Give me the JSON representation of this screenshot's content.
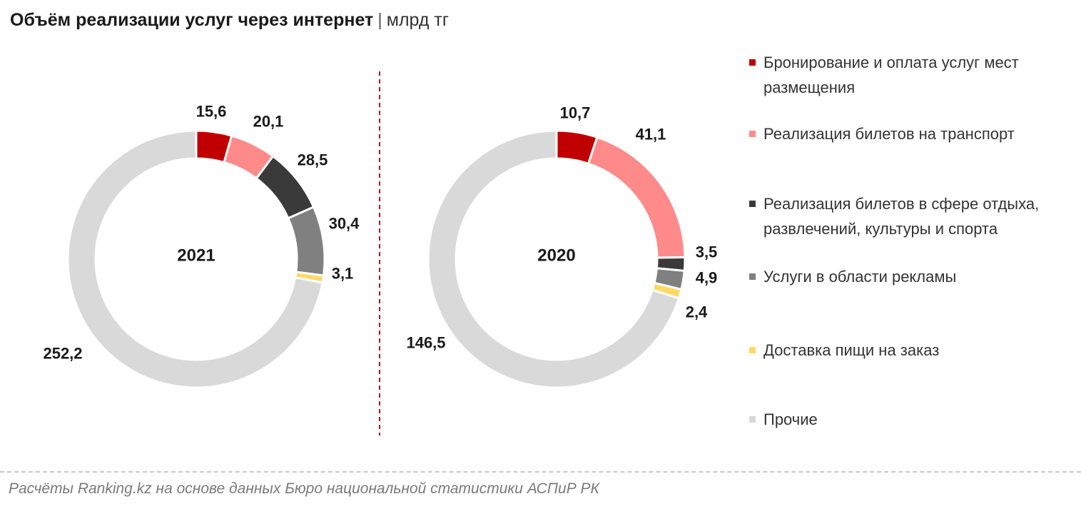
{
  "title": "Объём реализации услуг через интернет",
  "title_separator": "|",
  "unit": "млрд тг",
  "source": "Расчёты Ranking.kz на основе данных Бюро национальной статистики АСПиР РК",
  "colors": {
    "divider": "#c0101a"
  },
  "chart_data": {
    "type": "pie",
    "variant": "donut",
    "legend_position": "right",
    "categories": [
      "Бронирование и оплата услуг мест размещения",
      "Реализация билетов на транспорт",
      "Реализация билетов в сфере отдыха, развлечений, культуры и спорта",
      "Услуги в области рекламы",
      "Доставка пищи на заказ",
      "Прочие"
    ],
    "colors": [
      "#c00000",
      "#ff8a8a",
      "#3a3a3a",
      "#808080",
      "#ffd966",
      "#d9d9d9"
    ],
    "series": [
      {
        "name": "2021",
        "values": [
          15.6,
          20.1,
          28.5,
          30.4,
          3.1,
          252.2
        ],
        "labels": [
          "15,6",
          "20,1",
          "28,5",
          "30,4",
          "3,1",
          "252,2"
        ]
      },
      {
        "name": "2020",
        "values": [
          10.7,
          41.1,
          3.5,
          4.9,
          2.4,
          146.5
        ],
        "labels": [
          "10,7",
          "41,1",
          "3,5",
          "4,9",
          "2,4",
          "146,5"
        ]
      }
    ]
  }
}
